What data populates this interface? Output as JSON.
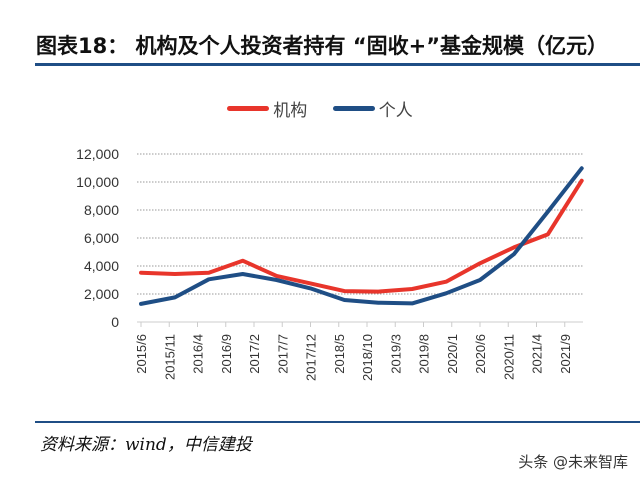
{
  "chart_data": {
    "type": "line",
    "title": "图表18：  机构及个人投资者持有 “固收+”基金规模（亿元）",
    "xlabel": "",
    "ylabel": "",
    "ylim": [
      0,
      12000
    ],
    "yticks": [
      0,
      2000,
      4000,
      6000,
      8000,
      10000,
      12000
    ],
    "ytick_labels": [
      "0",
      "2,000",
      "4,000",
      "6,000",
      "8,000",
      "10,000",
      "12,000"
    ],
    "xtick_labels": [
      "2015/6",
      "2015/11",
      "2016/4",
      "2016/9",
      "2017/2",
      "2017/7",
      "2017/12",
      "2018/5",
      "2018/10",
      "2019/3",
      "2019/8",
      "2020/1",
      "2020/6",
      "2020/11",
      "2021/4",
      "2021/9"
    ],
    "x": [
      "2015/6",
      "2015/12",
      "2016/6",
      "2016/12",
      "2017/6",
      "2017/12",
      "2018/6",
      "2018/12",
      "2019/6",
      "2019/12",
      "2020/6",
      "2020/12",
      "2021/6",
      "2021/12"
    ],
    "grid": true,
    "legend": "top-center",
    "series": [
      {
        "name": "机构",
        "color": "#e8352b",
        "values": [
          3520,
          3430,
          3520,
          4380,
          3290,
          2760,
          2210,
          2170,
          2360,
          2880,
          4190,
          5330,
          6260,
          10090
        ]
      },
      {
        "name": "个人",
        "color": "#1f4e85",
        "values": [
          1290,
          1760,
          3050,
          3430,
          3000,
          2400,
          1570,
          1380,
          1330,
          2050,
          3000,
          4840,
          7880,
          10980
        ]
      }
    ]
  },
  "source": "资料来源：wind，中信建投",
  "watermark": "头条 @未来智库"
}
